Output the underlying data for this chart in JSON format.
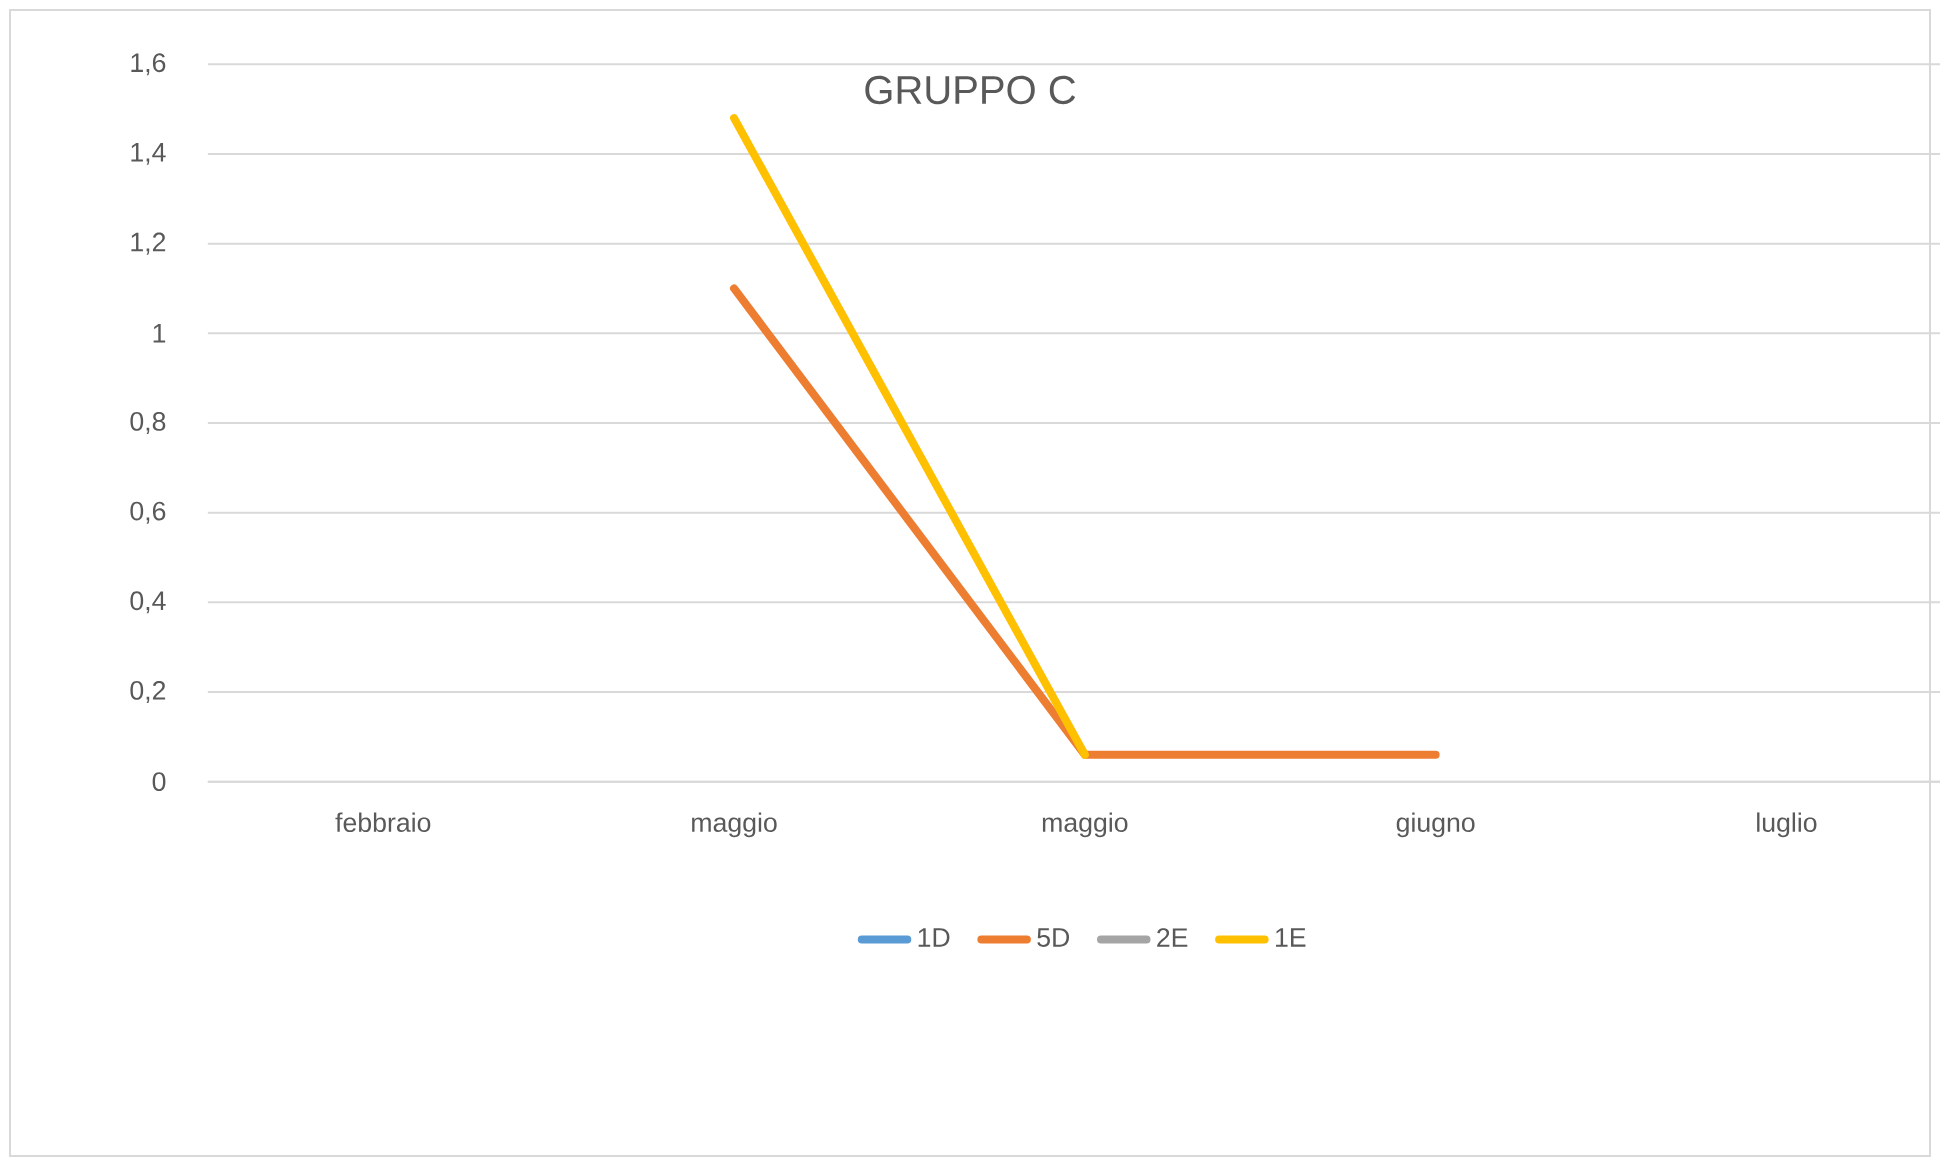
{
  "chart_data": {
    "type": "line",
    "title": "GRUPPO C",
    "categories": [
      "febbraio",
      "maggio",
      "maggio",
      "giugno",
      "luglio"
    ],
    "series": [
      {
        "name": "1D",
        "color": "#5b9bd5",
        "values": [
          null,
          null,
          null,
          null,
          null
        ]
      },
      {
        "name": "5D",
        "color": "#ed7d31",
        "values": [
          null,
          1.1,
          0.06,
          0.06,
          null
        ]
      },
      {
        "name": "2E",
        "color": "#a5a5a5",
        "values": [
          null,
          null,
          null,
          null,
          null
        ]
      },
      {
        "name": "1E",
        "color": "#ffc000",
        "values": [
          null,
          1.48,
          0.06,
          null,
          null
        ]
      }
    ],
    "ylim": [
      0,
      1.6
    ],
    "yticks": [
      0,
      {
        "value": 0.2,
        "label": "0,2"
      },
      {
        "value": 0.4,
        "label": "0,4"
      },
      {
        "value": 0.6,
        "label": "0,6"
      },
      {
        "value": 0.8,
        "label": "0,8"
      },
      1,
      {
        "value": 1.2,
        "label": "1,2"
      },
      {
        "value": 1.4,
        "label": "1,4"
      },
      {
        "value": 1.6,
        "label": "1,6"
      }
    ],
    "grid": "y",
    "legend": "bottom",
    "marker": "none",
    "line_style": "solid"
  }
}
